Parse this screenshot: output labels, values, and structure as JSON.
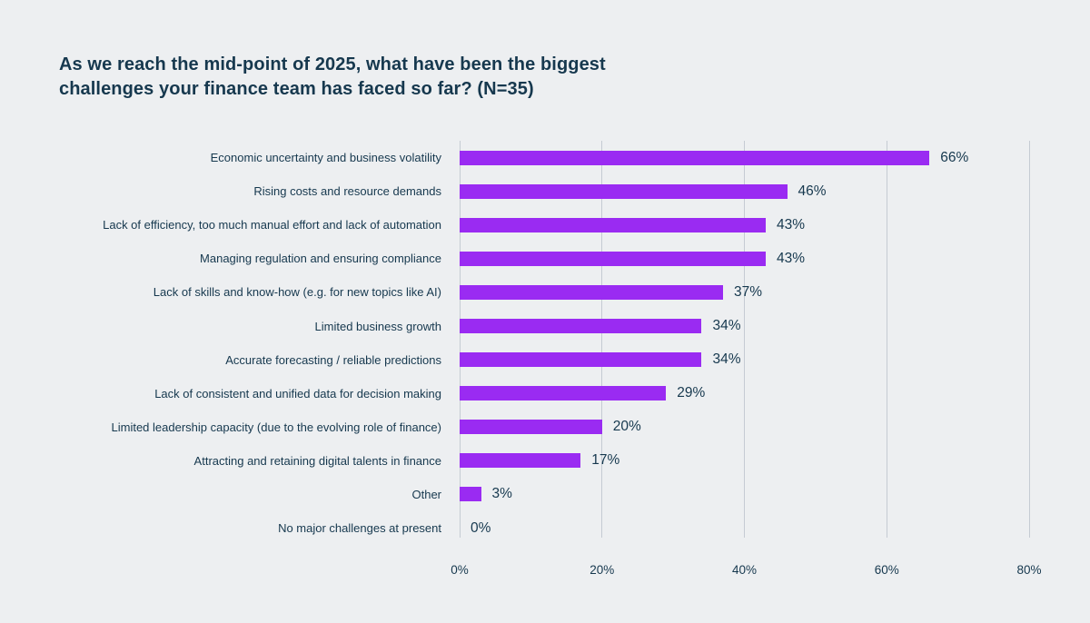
{
  "title": "As we reach the mid-point of 2025, what have been the biggest challenges your finance team has faced so far? (N=35)",
  "colors": {
    "background": "#edeff1",
    "bar": "#9a2bf2",
    "text": "#16384e",
    "gridline": "#c5cbd3"
  },
  "chart_data": {
    "type": "bar",
    "orientation": "horizontal",
    "title": "As we reach the mid-point of 2025, what have been the biggest challenges your finance team has faced so far? (N=35)",
    "n": 35,
    "categories": [
      "Economic uncertainty and business volatility",
      "Rising costs and resource demands",
      "Lack of efficiency, too much manual effort and lack of automation",
      "Managing regulation and ensuring compliance",
      "Lack of skills and know-how (e.g. for new topics like AI)",
      "Limited business growth",
      "Accurate forecasting / reliable predictions",
      "Lack of consistent and unified data for decision making",
      "Limited leadership capacity (due to the evolving role of finance)",
      "Attracting and retaining digital talents in finance",
      "Other",
      "No major challenges at present"
    ],
    "values": [
      66,
      46,
      43,
      43,
      37,
      34,
      34,
      29,
      20,
      17,
      3,
      0
    ],
    "value_labels": [
      "66%",
      "46%",
      "43%",
      "43%",
      "37%",
      "34%",
      "34%",
      "29%",
      "20%",
      "17%",
      "3%",
      "0%"
    ],
    "xlabel": "",
    "ylabel": "",
    "xlim": [
      0,
      80
    ],
    "x_ticks": [
      "0%",
      "20%",
      "40%",
      "60%",
      "80%"
    ],
    "x_tick_values": [
      0,
      20,
      40,
      60,
      80
    ],
    "grid": "vertical-gridlines-on",
    "legend": "none"
  }
}
